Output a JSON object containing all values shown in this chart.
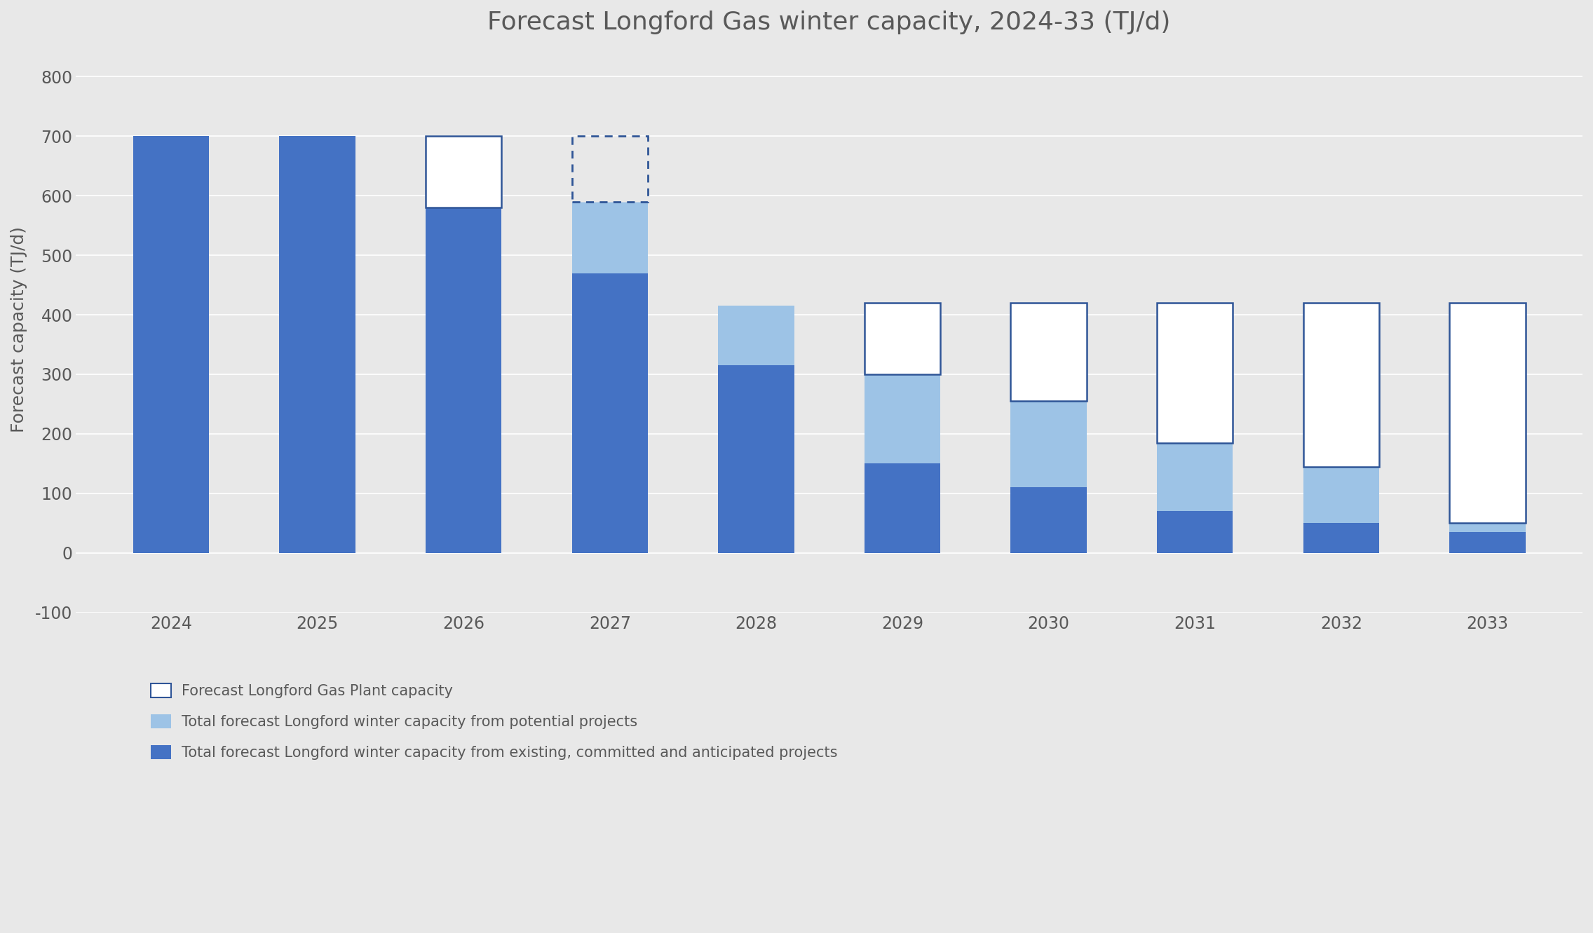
{
  "title": "Forecast Longford Gas winter capacity, 2024-33 (TJ/d)",
  "ylabel": "Forecast capacity (TJ/d)",
  "years": [
    2024,
    2025,
    2026,
    2027,
    2028,
    2029,
    2030,
    2031,
    2032,
    2033
  ],
  "existing_committed": [
    700,
    700,
    580,
    470,
    315,
    150,
    110,
    70,
    50,
    35
  ],
  "potential_projects": [
    0,
    0,
    0,
    120,
    100,
    150,
    145,
    115,
    95,
    15
  ],
  "plant_capacity_top": [
    700,
    700,
    700,
    700,
    415,
    420,
    420,
    420,
    420,
    420
  ],
  "outline_style": [
    "none",
    "none",
    "solid",
    "dotted",
    "solid",
    "solid",
    "solid",
    "solid",
    "solid",
    "solid"
  ],
  "color_dark_blue": "#4472C4",
  "color_light_blue": "#9DC3E6",
  "color_outline": "#2F5597",
  "bg_color": "#E8E8E8",
  "grid_color": "#FFFFFF",
  "text_color": "#595959",
  "ylim": [
    -100,
    850
  ],
  "yticks": [
    -100,
    0,
    100,
    200,
    300,
    400,
    500,
    600,
    700,
    800
  ],
  "title_fontsize": 26,
  "axis_label_fontsize": 18,
  "tick_fontsize": 17,
  "legend_fontsize": 15,
  "bar_width": 0.52,
  "legend_labels": [
    "Forecast Longford Gas Plant capacity",
    "Total forecast Longford winter capacity from potential projects",
    "Total forecast Longford winter capacity from existing, committed and anticipated projects"
  ]
}
